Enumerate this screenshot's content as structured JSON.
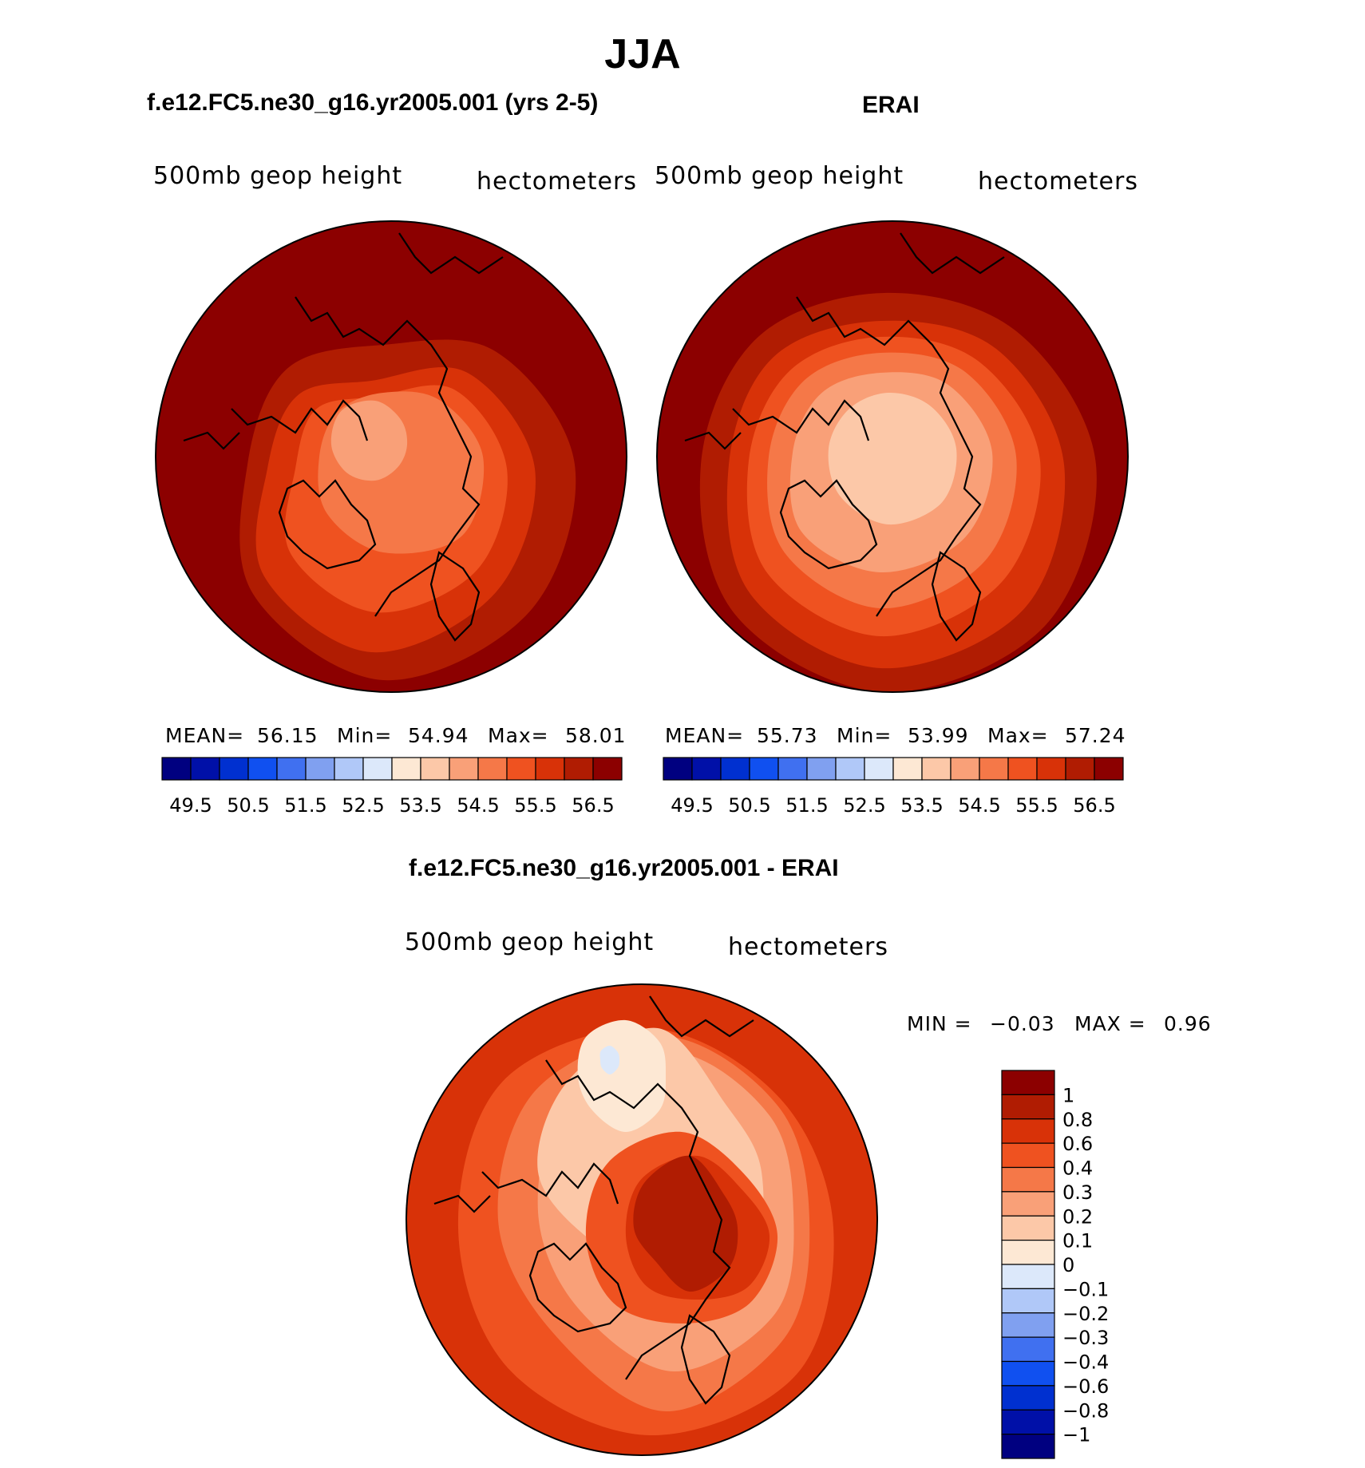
{
  "figure": {
    "title": "JJA",
    "colors": {
      "ocean_bg": "#ffffff",
      "coast": "#000000"
    }
  },
  "chart_data": [
    {
      "type": "heatmap",
      "projection": "north-polar-stereographic",
      "title": "f.e12.FC5.ne30_g16.yr2005.001 (yrs 2-5)",
      "left_label": "500mb geop height",
      "right_label": "hectometers",
      "stats": {
        "mean_label": "MEAN=",
        "mean": "56.15",
        "min_label": "Min=",
        "min": "54.94",
        "max_label": "Max=",
        "max": "58.01"
      },
      "levels": [
        49.5,
        50,
        50.5,
        51,
        51.5,
        52,
        52.5,
        53,
        53.5,
        54,
        54.5,
        55,
        55.5,
        56,
        56.5
      ],
      "tick_labels": [
        "49.5",
        "50.5",
        "51.5",
        "52.5",
        "53.5",
        "54.5",
        "55.5",
        "56.5"
      ],
      "colorbar_colors": [
        "#000080",
        "#0010a8",
        "#0030d0",
        "#1050f0",
        "#4070f0",
        "#80a0f0",
        "#b0c8f8",
        "#dce8fa",
        "#fde8d4",
        "#fcc8a8",
        "#f9a078",
        "#f57848",
        "#ef5220",
        "#d83208",
        "#b01c02",
        "#8c0000"
      ],
      "contour_bands": [
        {
          "level": 56.5,
          "color": "#8c0000"
        },
        {
          "level": 56.0,
          "color": "#b01c02"
        },
        {
          "level": 55.5,
          "color": "#d83208"
        },
        {
          "level": 55.0,
          "color": "#ef5220"
        },
        {
          "level": 54.5,
          "color": "#f57848"
        },
        {
          "level": 54.0,
          "color": "#f9a078"
        }
      ]
    },
    {
      "type": "heatmap",
      "projection": "north-polar-stereographic",
      "title": "ERAI",
      "left_label": "500mb geop height",
      "right_label": "hectometers",
      "stats": {
        "mean_label": "MEAN=",
        "mean": "55.73",
        "min_label": "Min=",
        "min": "53.99",
        "max_label": "Max=",
        "max": "57.24"
      },
      "levels": [
        49.5,
        50,
        50.5,
        51,
        51.5,
        52,
        52.5,
        53,
        53.5,
        54,
        54.5,
        55,
        55.5,
        56,
        56.5
      ],
      "tick_labels": [
        "49.5",
        "50.5",
        "51.5",
        "52.5",
        "53.5",
        "54.5",
        "55.5",
        "56.5"
      ],
      "colorbar_colors": [
        "#000080",
        "#0010a8",
        "#0030d0",
        "#1050f0",
        "#4070f0",
        "#80a0f0",
        "#b0c8f8",
        "#dce8fa",
        "#fde8d4",
        "#fcc8a8",
        "#f9a078",
        "#f57848",
        "#ef5220",
        "#d83208",
        "#b01c02",
        "#8c0000"
      ],
      "contour_bands": [
        {
          "level": 56.5,
          "color": "#8c0000"
        },
        {
          "level": 56.0,
          "color": "#b01c02"
        },
        {
          "level": 55.5,
          "color": "#d83208"
        },
        {
          "level": 55.0,
          "color": "#ef5220"
        },
        {
          "level": 54.5,
          "color": "#f57848"
        },
        {
          "level": 54.0,
          "color": "#f9a078"
        },
        {
          "level": 53.5,
          "color": "#fcc8a8"
        }
      ]
    },
    {
      "type": "heatmap",
      "projection": "north-polar-stereographic",
      "title": "f.e12.FC5.ne30_g16.yr2005.001 - ERAI",
      "left_label": "500mb geop height",
      "right_label": "hectometers",
      "stats": {
        "min_label": "MIN =",
        "min": "−0.03",
        "max_label": "MAX =",
        "max": "0.96"
      },
      "levels": [
        -1,
        -0.8,
        -0.6,
        -0.4,
        -0.3,
        -0.2,
        -0.1,
        0,
        0.1,
        0.2,
        0.3,
        0.4,
        0.6,
        0.8,
        1
      ],
      "tick_labels": [
        "1",
        "0.8",
        "0.6",
        "0.4",
        "0.3",
        "0.2",
        "0.1",
        "0",
        "−0.1",
        "−0.2",
        "−0.3",
        "−0.4",
        "−0.6",
        "−0.8",
        "−1"
      ],
      "colorbar_colors": [
        "#8c0000",
        "#b01c02",
        "#d83208",
        "#ef5220",
        "#f57848",
        "#f9a078",
        "#fcc8a8",
        "#fde8d4",
        "#dce8fa",
        "#b0c8f8",
        "#80a0f0",
        "#4070f0",
        "#1050f0",
        "#0030d0",
        "#0010a8",
        "#000080"
      ],
      "contour_bands": [
        {
          "level": 0.6,
          "color": "#d83208"
        },
        {
          "level": 0.4,
          "color": "#ef5220"
        },
        {
          "level": 0.3,
          "color": "#f57848"
        },
        {
          "level": 0.2,
          "color": "#f9a078"
        },
        {
          "level": 0.1,
          "color": "#fcc8a8"
        },
        {
          "level": 0.0,
          "color": "#fde8d4"
        },
        {
          "level": 0.4,
          "color": "#ef5220"
        },
        {
          "level": 0.6,
          "color": "#d83208"
        },
        {
          "level": 0.8,
          "color": "#b01c02"
        },
        {
          "level": -0.1,
          "color": "#dce8fa"
        }
      ]
    }
  ]
}
